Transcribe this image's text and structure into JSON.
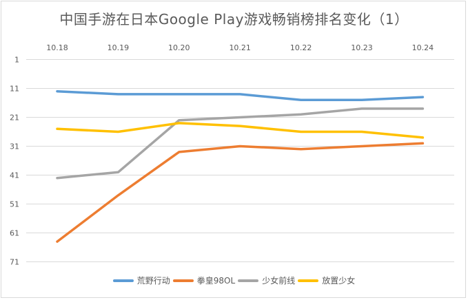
{
  "chart_data": {
    "type": "line",
    "title": "中国手游在日本Google Play游戏畅销榜排名变化（1）",
    "xlabel": "",
    "ylabel": "",
    "categories": [
      "10.18",
      "10.19",
      "10.20",
      "10.21",
      "10.22",
      "10.23",
      "10.24"
    ],
    "y_ticks": [
      "1",
      "11",
      "21",
      "31",
      "41",
      "51",
      "61",
      "71"
    ],
    "ylim": [
      1,
      71
    ],
    "y_reversed": true,
    "x_axis_position": "top",
    "grid": true,
    "legend_position": "bottom",
    "series": [
      {
        "name": "荒野行动",
        "color": "#5B9BD5",
        "values": [
          12,
          13,
          13,
          13,
          15,
          15,
          14
        ]
      },
      {
        "name": "拳皇98OL",
        "color": "#ED7D31",
        "values": [
          64,
          48,
          33,
          31,
          32,
          31,
          30
        ]
      },
      {
        "name": "少女前线",
        "color": "#A5A5A5",
        "values": [
          42,
          40,
          22,
          21,
          20,
          18,
          18
        ]
      },
      {
        "name": "放置少女",
        "color": "#FFC000",
        "values": [
          25,
          26,
          23,
          24,
          26,
          26,
          28
        ]
      }
    ]
  }
}
